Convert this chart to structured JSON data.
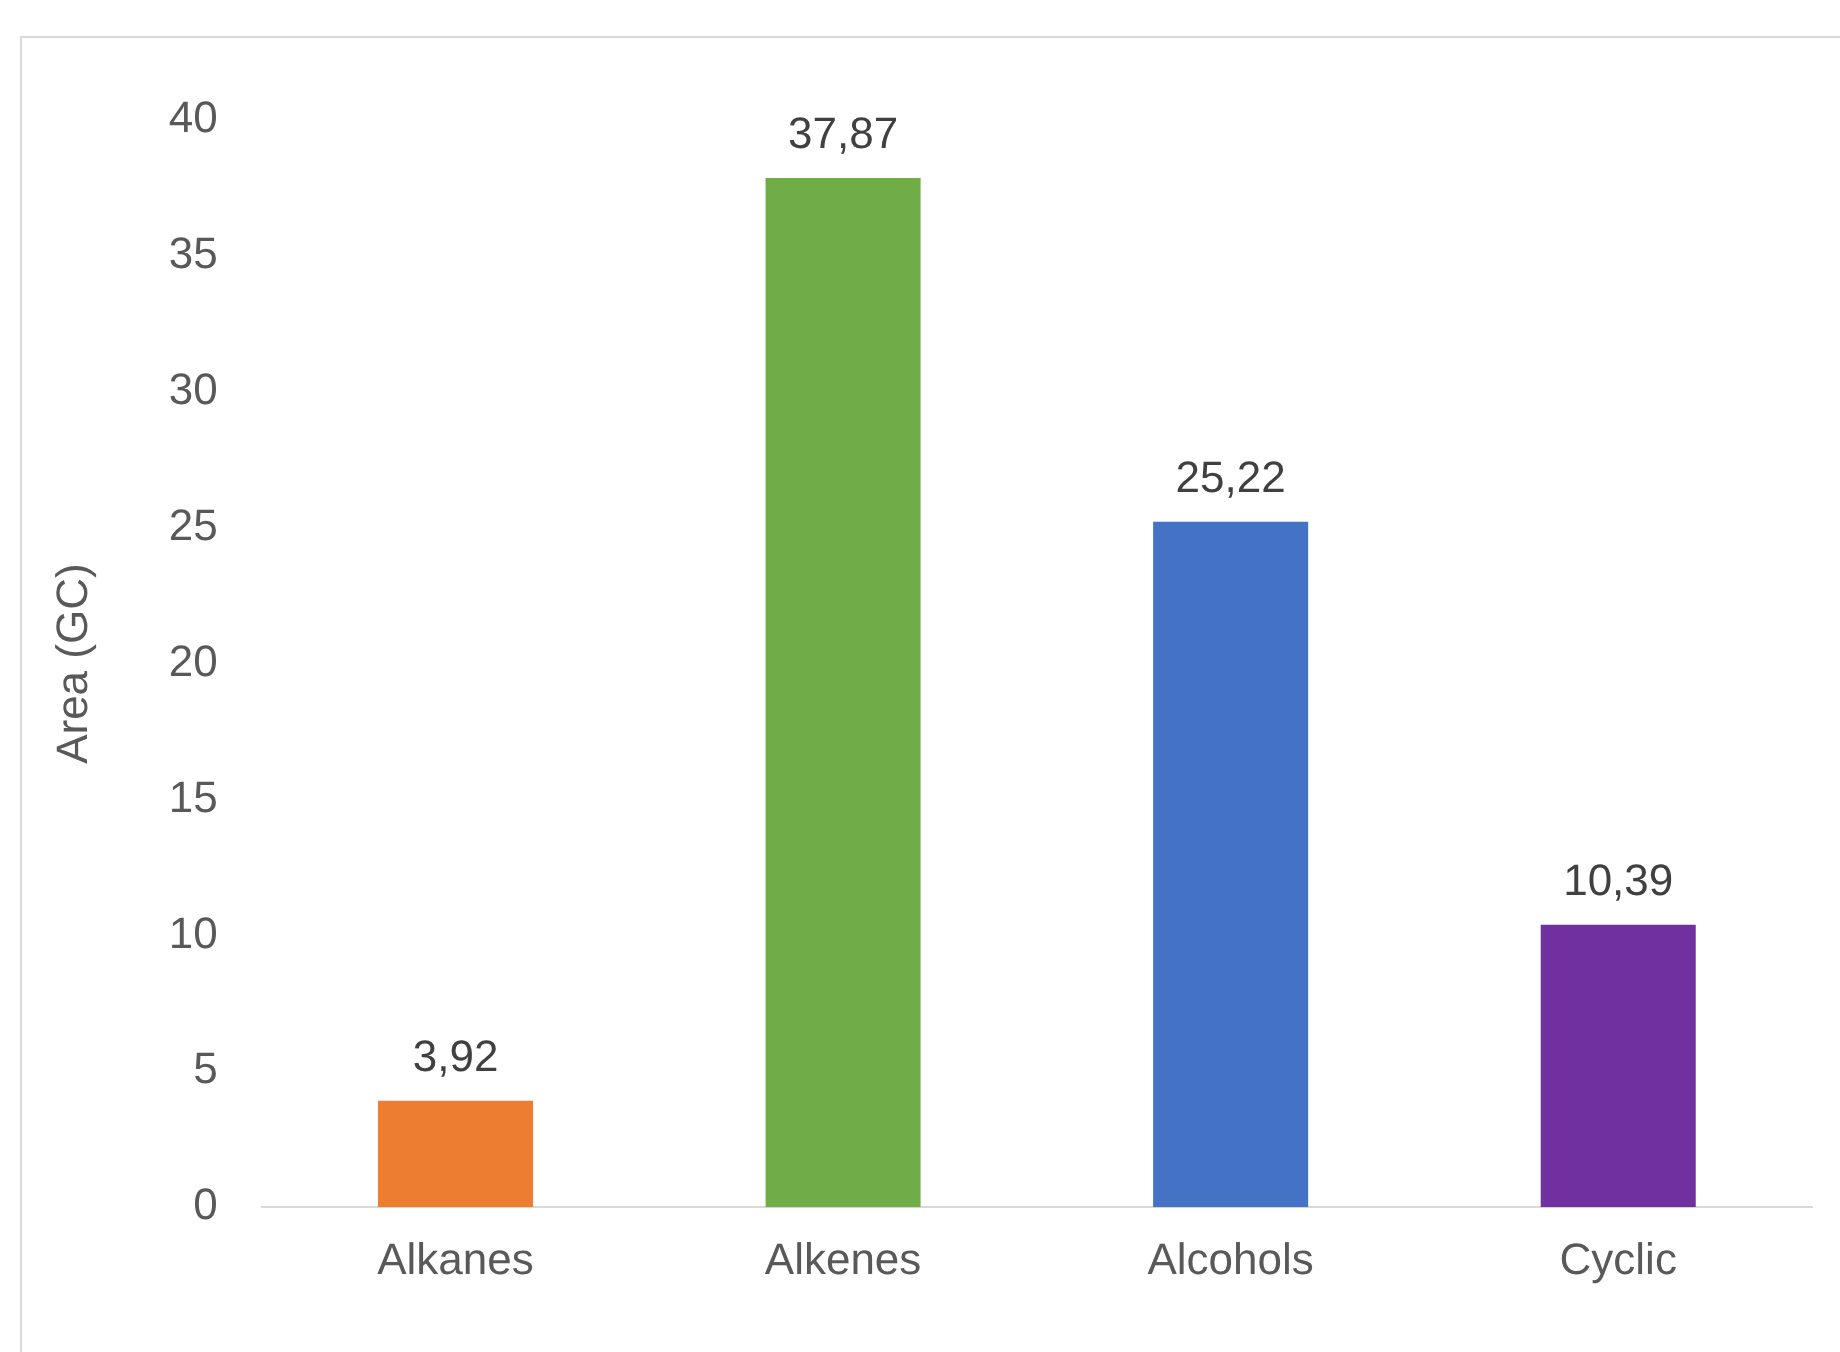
{
  "chart_data": {
    "type": "bar",
    "ylabel": "Area (GC)",
    "categories": [
      "Alkanes",
      "Alkenes",
      "Alcohols",
      "Cyclic"
    ],
    "values": [
      3.92,
      37.87,
      25.22,
      10.39
    ],
    "colors": [
      "#ed7d31",
      "#70ad47",
      "#4472c4",
      "#7030a0"
    ],
    "value_labels": [
      "3,92",
      "37,87",
      "25,22",
      "10,39"
    ],
    "ylim": [
      0,
      40
    ],
    "yticks": [
      0,
      5,
      10,
      15,
      20,
      25,
      30,
      35,
      40
    ],
    "grid": false,
    "legend": false
  }
}
